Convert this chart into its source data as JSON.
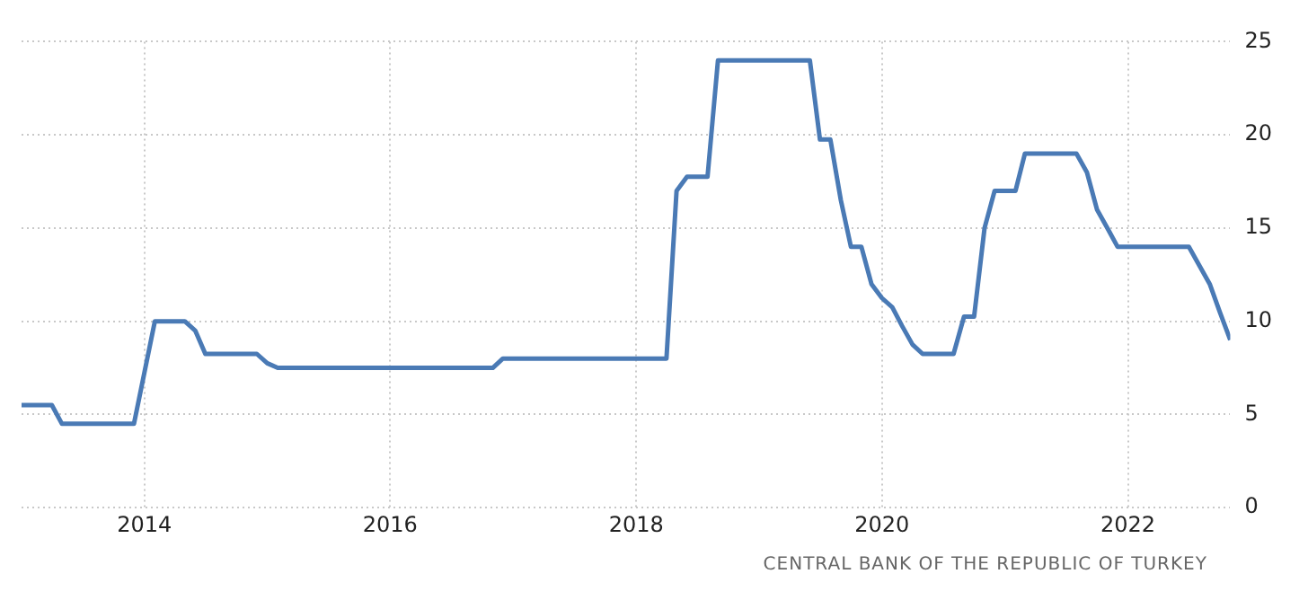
{
  "chart_data": {
    "type": "line",
    "x": [
      "2013-01",
      "2013-04",
      "2013-05",
      "2013-12",
      "2014-01",
      "2014-02",
      "2014-05",
      "2014-06",
      "2014-07",
      "2014-12",
      "2015-01",
      "2015-02",
      "2016-11",
      "2016-12",
      "2018-04",
      "2018-05",
      "2018-06",
      "2018-08",
      "2018-09",
      "2019-06",
      "2019-07",
      "2019-08",
      "2019-09",
      "2019-10",
      "2019-11",
      "2019-12",
      "2020-01",
      "2020-02",
      "2020-03",
      "2020-04",
      "2020-05",
      "2020-08",
      "2020-09",
      "2020-10",
      "2020-11",
      "2020-12",
      "2021-02",
      "2021-03",
      "2021-08",
      "2021-09",
      "2021-10",
      "2021-11",
      "2021-12",
      "2022-07",
      "2022-08",
      "2022-09",
      "2022-10",
      "2022-11"
    ],
    "series": [
      {
        "color": "#4a7ab5",
        "values": [
          5.5,
          5.5,
          4.5,
          4.5,
          7.25,
          10,
          10,
          9.5,
          8.25,
          8.25,
          7.75,
          7.5,
          7.5,
          8,
          8,
          17,
          17.75,
          17.75,
          24,
          24,
          19.75,
          19.75,
          16.5,
          14,
          14,
          12,
          11.25,
          10.75,
          9.75,
          8.75,
          8.25,
          8.25,
          10.25,
          10.25,
          15,
          17,
          17,
          19,
          19,
          18,
          16,
          15,
          14,
          14,
          13,
          12,
          10.5,
          9
        ]
      }
    ],
    "xlim": [
      "2013-01",
      "2022-11"
    ],
    "xticks": [
      "2014",
      "2016",
      "2018",
      "2020",
      "2022"
    ],
    "ylim": [
      0,
      25
    ],
    "yticks": [
      0,
      5,
      10,
      15,
      20,
      25
    ],
    "grid": true,
    "legend": false,
    "marker": "none",
    "line_style": "solid",
    "annotations": [
      "CENTRAL BANK OF THE REPUBLIC OF TURKEY"
    ]
  }
}
